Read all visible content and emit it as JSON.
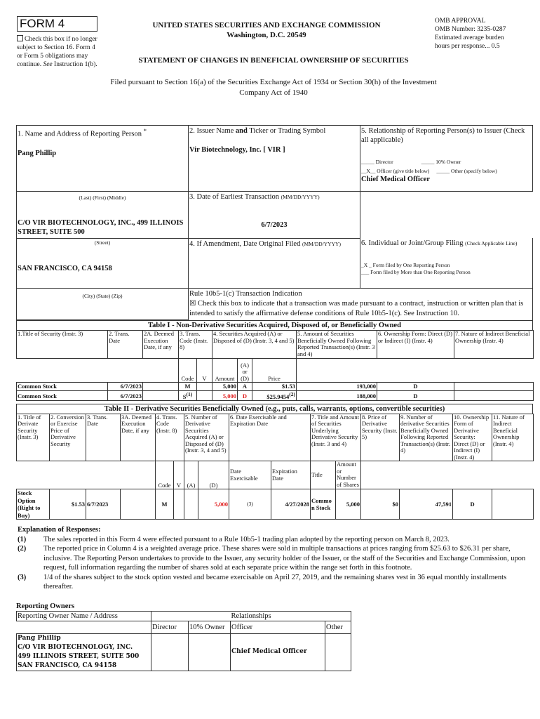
{
  "header": {
    "form": "FORM 4",
    "no_longer_text": "Check this box if no longer subject to Section 16. Form 4 or Form 5 obligations may continue.",
    "see": "See",
    "instruction": "Instruction 1(b).",
    "agency": "UNITED STATES SECURITIES AND EXCHANGE COMMISSION",
    "city": "Washington, D.C. 20549",
    "statement": "STATEMENT OF CHANGES IN BENEFICIAL OWNERSHIP OF SECURITIES",
    "filed": "Filed pursuant to Section 16(a) of the Securities Exchange Act of 1934 or Section 30(h) of the Investment Company Act of 1940",
    "omb": [
      "OMB APPROVAL",
      "OMB Number: 3235-0287",
      "Estimated average burden",
      "hours per response... 0.5"
    ]
  },
  "box1": {
    "label": "1. Name and Address of Reporting Person",
    "sup": "*",
    "name": "Pang Phillip",
    "name_caption": "(Last)  (First)  (Middle)",
    "street": "C/O VIR BIOTECHNOLOGY, INC., 499 ILLINOIS STREET, SUITE 500",
    "street_caption": "(Street)",
    "city": "SAN FRANCISCO, CA 94158",
    "city_caption": "(City)  (State)  (Zip)"
  },
  "box2": {
    "label_a": "2. Issuer Name",
    "label_and": "and",
    "label_b": "Ticker or Trading Symbol",
    "value": "Vir Biotechnology, Inc. [ VIR ]"
  },
  "box3": {
    "label": "3. Date of Earliest Transaction",
    "fmt": "(MM/DD/YYYY)",
    "value": "6/7/2023"
  },
  "box4": {
    "label": "4. If Amendment, Date Original Filed",
    "fmt": "(MM/DD/YYYY)"
  },
  "box5": {
    "label": "5. Relationship of Reporting Person(s) to Issuer (Check all applicable)",
    "director": "_____ Director",
    "owner10": "_____ 10% Owner",
    "officer": "__X__ Officer (give title below)",
    "other": "_____ Other (specify below)",
    "title": "Chief Medical Officer"
  },
  "box6": {
    "label": "6. Individual or Joint/Group Filing",
    "note": "(Check Applicable Line)",
    "one": "_X _ Form filed by One Reporting Person",
    "more": "___ Form filed by More than One Reporting Person"
  },
  "rule": {
    "label": "Rule 10b5-1(c) Transaction Indication",
    "checkbox": "☒",
    "text": "Check this box to indicate that a transaction was made pursuant to a contract, instruction or written plan that is intended to satisfy the affirmative defense conditions of Rule 10b5-1(c). See Instruction 10."
  },
  "table1": {
    "title": "Table I - Non-Derivative Securities Acquired, Disposed of, or Beneficially Owned",
    "headers": [
      "1.Title of Security (Instr. 3)",
      "2. Trans. Date",
      "2A. Deemed Execution Date, if any",
      "3. Trans. Code (Instr. 8)",
      "4. Securities Acquired (A) or Disposed of (D) (Instr. 3, 4 and 5)",
      "5. Amount of Securities Beneficially Owned Following Reported Transaction(s) (Instr. 3 and 4)",
      "6. Ownership Form: Direct (D) or Indirect (I) (Instr. 4)",
      "7. Nature of Indirect Beneficial Ownership (Instr. 4)"
    ],
    "sub": [
      "Code",
      "V",
      "Amount",
      "(A) or (D)",
      "Price"
    ],
    "rows": [
      {
        "title": "Common Stock",
        "date": "6/7/2023",
        "code": "M",
        "code_fn": "",
        "amount": "5,000",
        "ad": "A",
        "price": "$1.53",
        "price_fn": "",
        "owned": "193,000",
        "form": "D"
      },
      {
        "title": "Common Stock",
        "date": "6/7/2023",
        "code": "S",
        "code_fn": "(1)",
        "amount": "5,000",
        "ad": "D",
        "price": "$25.9454",
        "price_fn": "(2)",
        "owned": "188,000",
        "form": "D"
      }
    ]
  },
  "table2": {
    "title": "Table II - Derivative Securities Beneficially Owned (e.g., puts, calls, warrants, options, convertible securities)",
    "headers": [
      "1. Title of Derivate Security (Instr. 3)",
      "2. Conversion or Exercise Price of Derivative Security",
      "3. Trans. Date",
      "3A. Deemed Execution Date, if any",
      "4. Trans. Code (Instr. 8)",
      "5. Number of Derivative Securities Acquired (A) or Disposed of (D) (Instr. 3, 4 and 5)",
      "6. Date Exercisable and Expiration Date",
      "7. Title and Amount of Securities Underlying Derivative Security (Instr. 3 and 4)",
      "8. Price of Derivative Security (Instr. 5)",
      "9. Number of derivative Securities Beneficially Owned Following Reported Transaction(s) (Instr. 4)",
      "10. Ownership Form of Derivative Security: Direct (D) or Indirect (I) (Instr. 4)",
      "11. Nature of Indirect Beneficial Ownership (Instr. 4)"
    ],
    "sub": [
      "Code",
      "V",
      "(A)",
      "(D)",
      "Date Exercisable",
      "Expiration Date",
      "Title",
      "Amount or Number of Shares"
    ],
    "row": {
      "title": "Stock Option (Right to Buy)",
      "price": "$1.53",
      "date": "6/7/2023",
      "code": "M",
      "d": "5,000",
      "exercisable": "(3)",
      "expiration": "4/27/2028",
      "u_title": "Common Stock",
      "u_amount": "5,000",
      "deriv_price": "$0",
      "owned": "47,591",
      "form": "D"
    }
  },
  "explanation": {
    "heading": "Explanation of Responses:",
    "notes": [
      {
        "k": "(1)",
        "t": "The sales reported in this Form 4 were effected pursuant to a Rule 10b5-1 trading plan adopted by the reporting person on March 8, 2023."
      },
      {
        "k": "(2)",
        "t": "The reported price in Column 4 is a weighted average price. These shares were sold in multiple transactions at prices ranging from $25.63 to $26.31 per share, inclusive. The Reporting Person undertakes to provide to the Issuer, any security holder of the Issuer, or the staff of the Securities and Exchange Commission, upon request, full information regarding the number of shares sold at each separate price within the range set forth in this footnote."
      },
      {
        "k": "(3)",
        "t": "1/4 of the shares subject to the stock option vested and became exercisable on April 27, 2019, and the remaining shares vest in 36 equal monthly installments thereafter."
      }
    ]
  },
  "owners": {
    "heading": "Reporting Owners",
    "col_name": "Reporting Owner Name / Address",
    "col_rel": "Relationships",
    "director": "Director",
    "owner10": "10% Owner",
    "officer": "Officer",
    "other": "Other",
    "name": "Pang Phillip",
    "addr1": "C/O VIR BIOTECHNOLOGY, INC.",
    "addr2": "499 ILLINOIS STREET, SUITE 500",
    "addr3": "SAN FRANCISCO, CA 94158",
    "officer_title": "Chief Medical Officer"
  }
}
